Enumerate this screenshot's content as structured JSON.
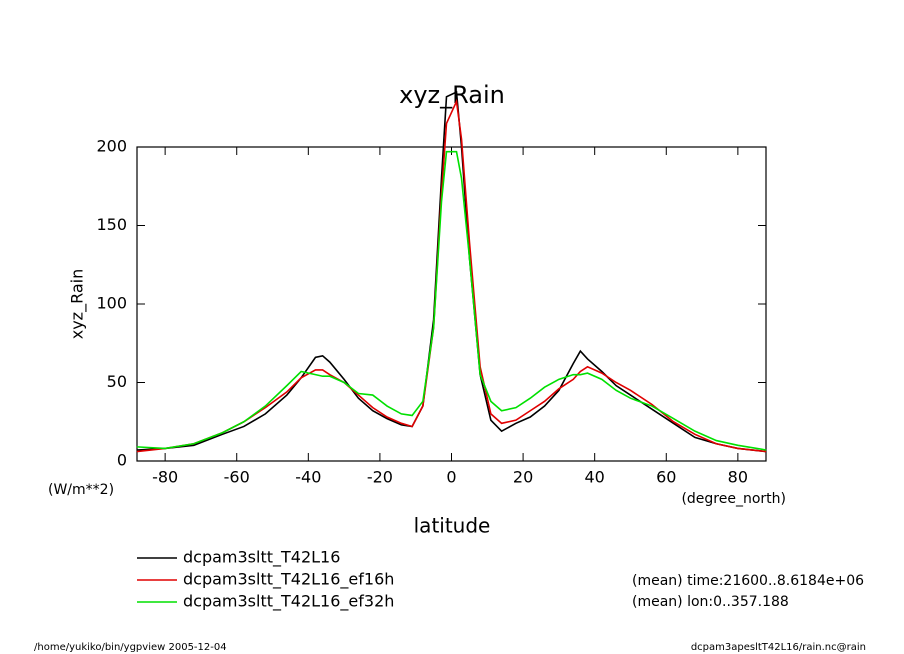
{
  "chart_data": {
    "type": "line",
    "title": "xyz_Rain",
    "y_label": "xyz_Rain",
    "y_units": "(W/m**2)",
    "x_label": "latitude",
    "x_units": "(degree_north)",
    "annotations": [
      "(mean) time:21600..8.6184e+06",
      "(mean) lon:0..357.188"
    ],
    "footer_left": "/home/yukiko/bin/ygpview  2005-12-04",
    "footer_right": "dcpam3apesltT42L16/rain.nc@rain",
    "xlim": [
      -87.86,
      87.86
    ],
    "ylim": [
      0,
      200
    ],
    "xticks": [
      -80,
      -60,
      -40,
      -20,
      0,
      20,
      40,
      60,
      80
    ],
    "yticks": [
      0,
      50,
      100,
      150,
      200
    ],
    "x": [
      -87.9,
      -80,
      -72,
      -64,
      -58,
      -52,
      -46,
      -42,
      -38,
      -36,
      -34,
      -30,
      -26,
      -22,
      -18,
      -14,
      -11,
      -8,
      -5,
      -2.8,
      -1.4,
      1.4,
      2.8,
      5,
      8,
      11,
      14,
      18,
      22,
      26,
      30,
      34,
      36,
      38,
      42,
      46,
      50,
      56,
      62,
      68,
      74,
      80,
      87.9
    ],
    "series": [
      {
        "name": "dcpam3sltt_T42L16",
        "color": "#000000",
        "values": [
          7,
          8,
          10,
          17,
          22,
          30,
          42,
          53,
          66,
          67,
          63,
          52,
          40,
          32,
          27,
          23,
          22,
          35,
          90,
          180,
          232,
          235,
          200,
          130,
          55,
          26,
          19,
          24,
          28,
          35,
          45,
          62,
          70,
          65,
          57,
          48,
          42,
          33,
          24,
          15,
          11,
          8,
          6
        ]
      },
      {
        "name": "dcpam3sltt_T42L16_ef16h",
        "color": "#e00000",
        "values": [
          6,
          8,
          11,
          18,
          25,
          34,
          44,
          53,
          58,
          58,
          55,
          50,
          42,
          34,
          28,
          24,
          22,
          35,
          85,
          170,
          215,
          229,
          205,
          140,
          60,
          30,
          24,
          26,
          32,
          38,
          46,
          52,
          57,
          60,
          56,
          50,
          45,
          36,
          25,
          17,
          11,
          8,
          6
        ]
      },
      {
        "name": "dcpam3sltt_T42L16_ef32h",
        "color": "#00e000",
        "values": [
          9,
          8,
          11,
          18,
          25,
          35,
          48,
          57,
          55,
          54,
          54,
          50,
          43,
          42,
          35,
          30,
          29,
          38,
          85,
          165,
          197,
          197,
          180,
          130,
          55,
          38,
          32,
          34,
          40,
          47,
          52,
          55,
          55,
          56,
          52,
          45,
          40,
          35,
          27,
          19,
          13,
          10,
          7
        ]
      }
    ]
  }
}
